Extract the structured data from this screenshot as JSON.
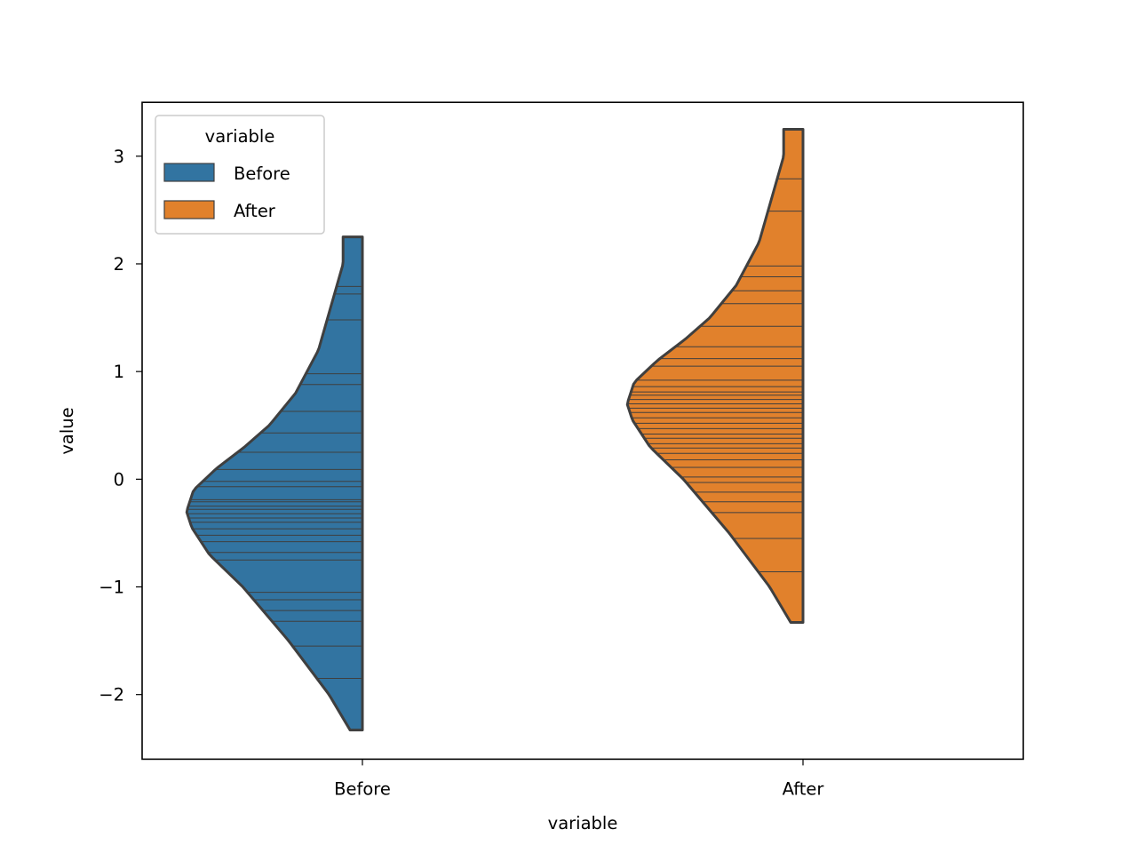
{
  "chart_data": {
    "type": "violin",
    "title": "",
    "xlabel": "variable",
    "ylabel": "value",
    "categories": [
      "Before",
      "After"
    ],
    "ylim": [
      -2.6,
      3.5
    ],
    "yticks": [
      -2,
      -1,
      0,
      1,
      2,
      3
    ],
    "ytick_labels": [
      "−2",
      "−1",
      "0",
      "1",
      "2",
      "3"
    ],
    "legend": {
      "title": "variable",
      "position": "top-left",
      "entries": [
        {
          "label": "Before",
          "color": "#3274a1"
        },
        {
          "label": "After",
          "color": "#e1812c"
        }
      ]
    },
    "series": [
      {
        "name": "Before",
        "side": "left",
        "color": "#3274a1",
        "range": [
          -2.33,
          2.25
        ],
        "density_profile": [
          {
            "value": -2.33,
            "width": 0.07
          },
          {
            "value": -2.0,
            "width": 0.19
          },
          {
            "value": -1.5,
            "width": 0.42
          },
          {
            "value": -1.0,
            "width": 0.68
          },
          {
            "value": -0.7,
            "width": 0.87
          },
          {
            "value": -0.45,
            "width": 0.97
          },
          {
            "value": -0.3,
            "width": 1.0
          },
          {
            "value": -0.1,
            "width": 0.96
          },
          {
            "value": 0.1,
            "width": 0.83
          },
          {
            "value": 0.3,
            "width": 0.67
          },
          {
            "value": 0.5,
            "width": 0.53
          },
          {
            "value": 0.8,
            "width": 0.38
          },
          {
            "value": 1.2,
            "width": 0.25
          },
          {
            "value": 1.6,
            "width": 0.18
          },
          {
            "value": 2.0,
            "width": 0.11
          },
          {
            "value": 2.25,
            "width": 0.11
          }
        ],
        "observations": [
          -1.85,
          -1.55,
          -1.32,
          -1.22,
          -1.12,
          -1.05,
          -0.75,
          -0.68,
          -0.58,
          -0.52,
          -0.46,
          -0.4,
          -0.36,
          -0.32,
          -0.28,
          -0.25,
          -0.21,
          -0.19,
          -0.07,
          -0.02,
          0.09,
          0.25,
          0.43,
          0.63,
          0.88,
          0.98,
          1.48,
          1.72,
          1.79
        ]
      },
      {
        "name": "After",
        "side": "left",
        "color": "#e1812c",
        "range": [
          -1.33,
          3.25
        ],
        "density_profile": [
          {
            "value": -1.33,
            "width": 0.07
          },
          {
            "value": -1.0,
            "width": 0.19
          },
          {
            "value": -0.5,
            "width": 0.42
          },
          {
            "value": 0.0,
            "width": 0.68
          },
          {
            "value": 0.3,
            "width": 0.87
          },
          {
            "value": 0.55,
            "width": 0.97
          },
          {
            "value": 0.7,
            "width": 1.0
          },
          {
            "value": 0.9,
            "width": 0.96
          },
          {
            "value": 1.1,
            "width": 0.83
          },
          {
            "value": 1.3,
            "width": 0.67
          },
          {
            "value": 1.5,
            "width": 0.53
          },
          {
            "value": 1.8,
            "width": 0.38
          },
          {
            "value": 2.2,
            "width": 0.25
          },
          {
            "value": 2.6,
            "width": 0.18
          },
          {
            "value": 3.0,
            "width": 0.11
          },
          {
            "value": 3.25,
            "width": 0.11
          }
        ],
        "observations": [
          -0.86,
          -0.55,
          -0.31,
          -0.21,
          -0.12,
          -0.03,
          0.02,
          0.11,
          0.18,
          0.24,
          0.29,
          0.33,
          0.38,
          0.42,
          0.47,
          0.52,
          0.57,
          0.62,
          0.66,
          0.7,
          0.74,
          0.78,
          0.81,
          0.86,
          0.92,
          1.05,
          1.12,
          1.23,
          1.42,
          1.63,
          1.75,
          1.88,
          1.98,
          2.49,
          2.79
        ]
      }
    ]
  }
}
